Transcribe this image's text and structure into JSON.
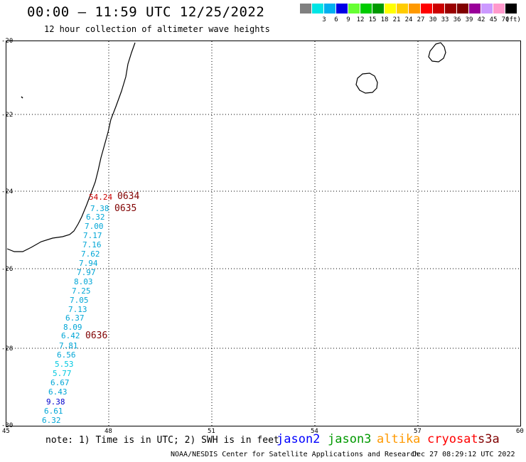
{
  "header": {
    "title": "00:00 – 11:59 UTC 12/25/2022",
    "subtitle": "12 hour collection of altimeter wave heights"
  },
  "color_legend": {
    "unit_label": "(ft)",
    "bins": [
      {
        "label": "",
        "color": "#808080"
      },
      {
        "label": "3",
        "color": "#00e5e5"
      },
      {
        "label": "6",
        "color": "#00b0f0"
      },
      {
        "label": "9",
        "color": "#0000e6"
      },
      {
        "label": "12",
        "color": "#66ff33"
      },
      {
        "label": "15",
        "color": "#00cc00"
      },
      {
        "label": "18",
        "color": "#009900"
      },
      {
        "label": "21",
        "color": "#ffff00"
      },
      {
        "label": "24",
        "color": "#ffcc00"
      },
      {
        "label": "27",
        "color": "#ff9900"
      },
      {
        "label": "30",
        "color": "#ff0000"
      },
      {
        "label": "33",
        "color": "#cc0000"
      },
      {
        "label": "36",
        "color": "#990000"
      },
      {
        "label": "39",
        "color": "#800000"
      },
      {
        "label": "42",
        "color": "#990099"
      },
      {
        "label": "45",
        "color": "#cc99ff"
      },
      {
        "label": "70",
        "color": "#ff99cc"
      },
      {
        "label": "",
        "color": "#000000"
      }
    ]
  },
  "axes": {
    "lat_labels": [
      "-20",
      "-22",
      "-24",
      "-26",
      "-28",
      "-30"
    ],
    "lon_labels": [
      "45",
      "48",
      "51",
      "54",
      "57",
      "60"
    ]
  },
  "wave_heights": [
    {
      "value": "54.24",
      "color": "#cc0000"
    },
    {
      "value": "7.38",
      "color": "#00a6d6"
    },
    {
      "value": "6.32",
      "color": "#00a6d6"
    },
    {
      "value": "7.00",
      "color": "#00a6d6"
    },
    {
      "value": "7.17",
      "color": "#00a6d6"
    },
    {
      "value": "7.16",
      "color": "#00a6d6"
    },
    {
      "value": "7.62",
      "color": "#00a6d6"
    },
    {
      "value": "7.94",
      "color": "#00a6d6"
    },
    {
      "value": "7.97",
      "color": "#00a6d6"
    },
    {
      "value": "8.03",
      "color": "#00a6d6"
    },
    {
      "value": "7.25",
      "color": "#00a6d6"
    },
    {
      "value": "7.05",
      "color": "#00a6d6"
    },
    {
      "value": "7.13",
      "color": "#00a6d6"
    },
    {
      "value": "6.37",
      "color": "#00a6d6"
    },
    {
      "value": "8.09",
      "color": "#00a6d6"
    },
    {
      "value": "6.42",
      "color": "#00a6d6"
    },
    {
      "value": "7.81",
      "color": "#00a6d6"
    },
    {
      "value": "6.56",
      "color": "#00a6d6"
    },
    {
      "value": "5.53",
      "color": "#00c8e0"
    },
    {
      "value": "5.77",
      "color": "#00c8e0"
    },
    {
      "value": "6.67",
      "color": "#00a6d6"
    },
    {
      "value": "6.43",
      "color": "#00a6d6"
    },
    {
      "value": "9.38",
      "color": "#0000cc"
    },
    {
      "value": "6.61",
      "color": "#00a6d6"
    },
    {
      "value": "6.32",
      "color": "#00a6d6"
    }
  ],
  "time_labels": [
    "0634",
    "0635",
    "0636"
  ],
  "footer": {
    "note": "note: 1) Time is in UTC; 2) SWH is in feet",
    "satellites": [
      {
        "name": "jason2",
        "color": "#0000ff"
      },
      {
        "name": "jason3",
        "color": "#009900"
      },
      {
        "name": "altika",
        "color": "#ff9900"
      },
      {
        "name": "cryosat",
        "color": "#ff0000"
      },
      {
        "name": "s3a",
        "color": "#800000"
      }
    ],
    "credit": "NOAA/NESDIS Center for Satellite Applications and Research",
    "timestamp": "Dec 27 08:29:12 UTC 2022"
  }
}
